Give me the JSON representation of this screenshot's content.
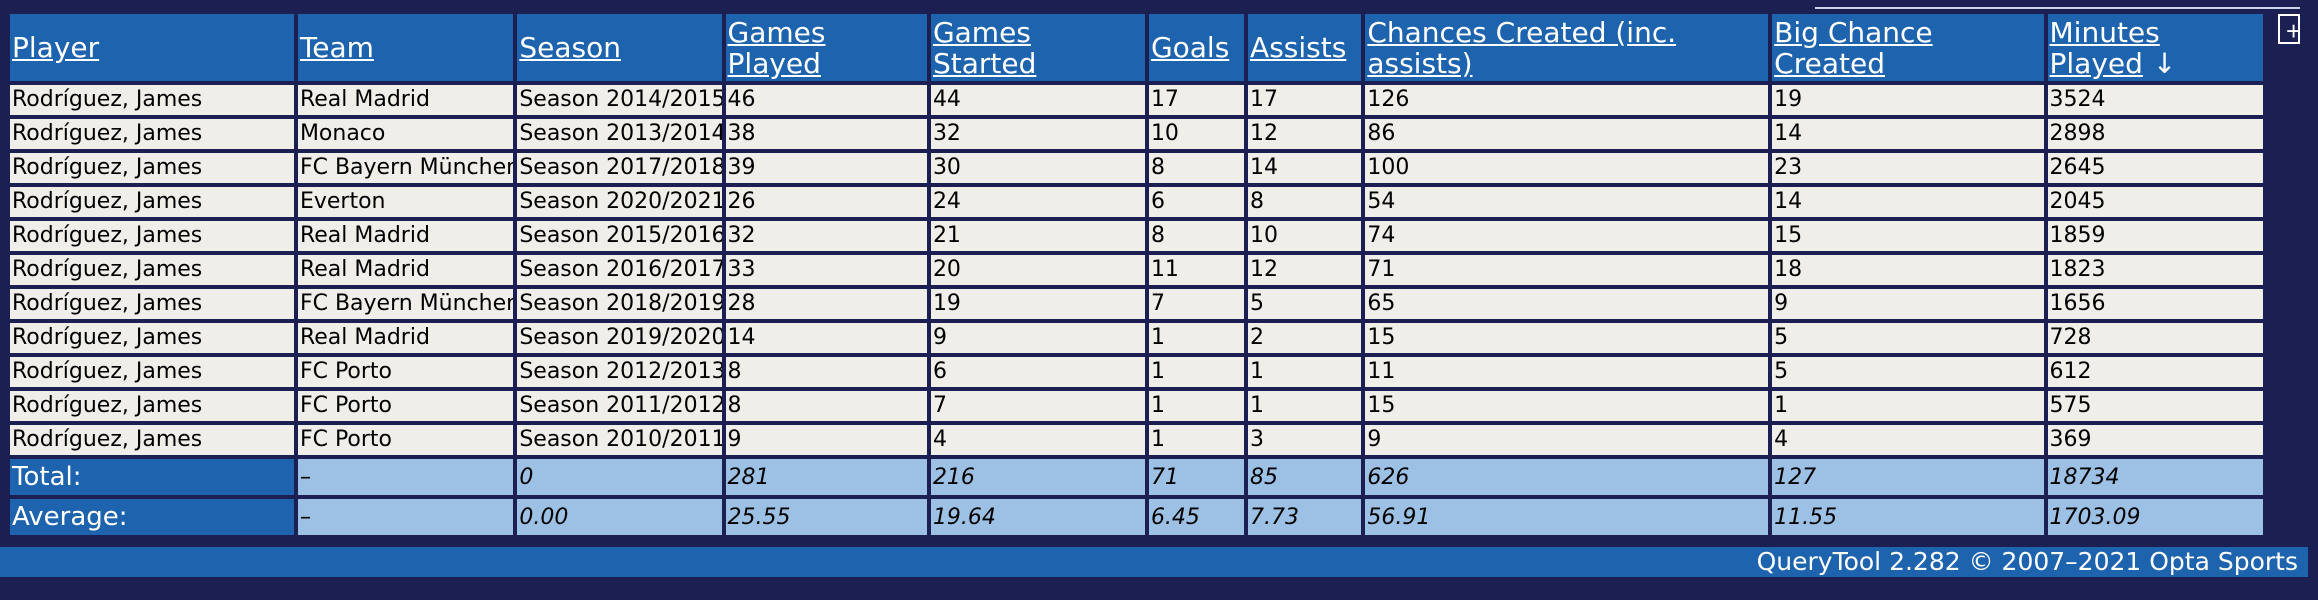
{
  "table": {
    "columns": [
      "Player",
      "Team",
      "Season",
      "Games Played",
      "Games Started",
      "Goals",
      "Assists",
      "Chances Created (inc. assists)",
      "Big Chance Created",
      "Minutes Played"
    ],
    "sort_indicator": "↓",
    "rows": [
      [
        "Rodríguez, James",
        "Real Madrid",
        "Season 2014/2015",
        "46",
        "44",
        "17",
        "17",
        "126",
        "19",
        "3524"
      ],
      [
        "Rodríguez, James",
        "Monaco",
        "Season 2013/2014",
        "38",
        "32",
        "10",
        "12",
        "86",
        "14",
        "2898"
      ],
      [
        "Rodríguez, James",
        "FC Bayern München",
        "Season 2017/2018",
        "39",
        "30",
        "8",
        "14",
        "100",
        "23",
        "2645"
      ],
      [
        "Rodríguez, James",
        "Everton",
        "Season 2020/2021",
        "26",
        "24",
        "6",
        "8",
        "54",
        "14",
        "2045"
      ],
      [
        "Rodríguez, James",
        "Real Madrid",
        "Season 2015/2016",
        "32",
        "21",
        "8",
        "10",
        "74",
        "15",
        "1859"
      ],
      [
        "Rodríguez, James",
        "Real Madrid",
        "Season 2016/2017",
        "33",
        "20",
        "11",
        "12",
        "71",
        "18",
        "1823"
      ],
      [
        "Rodríguez, James",
        "FC Bayern München",
        "Season 2018/2019",
        "28",
        "19",
        "7",
        "5",
        "65",
        "9",
        "1656"
      ],
      [
        "Rodríguez, James",
        "Real Madrid",
        "Season 2019/2020",
        "14",
        "9",
        "1",
        "2",
        "15",
        "5",
        "728"
      ],
      [
        "Rodríguez, James",
        "FC Porto",
        "Season 2012/2013",
        "8",
        "6",
        "1",
        "1",
        "11",
        "5",
        "612"
      ],
      [
        "Rodríguez, James",
        "FC Porto",
        "Season 2011/2012",
        "8",
        "7",
        "1",
        "1",
        "15",
        "1",
        "575"
      ],
      [
        "Rodríguez, James",
        "FC Porto",
        "Season 2010/2011",
        "9",
        "4",
        "1",
        "3",
        "9",
        "4",
        "369"
      ]
    ],
    "total": {
      "label": "Total:",
      "values": [
        "–",
        "0",
        "281",
        "216",
        "71",
        "85",
        "626",
        "127",
        "18734"
      ]
    },
    "average": {
      "label": "Average:",
      "values": [
        "–",
        "0.00",
        "25.55",
        "19.64",
        "6.45",
        "7.73",
        "56.91",
        "11.55",
        "1703.09"
      ]
    }
  },
  "controls": {
    "expand_label": "+"
  },
  "footer": {
    "credit": "QueryTool 2.282 © 2007–2021 Opta Sports"
  },
  "colors": {
    "page_background": "#1b1f52",
    "header_background": "#1e63ad",
    "row_background": "#efeee9",
    "summary_background": "#9cc1e4"
  }
}
